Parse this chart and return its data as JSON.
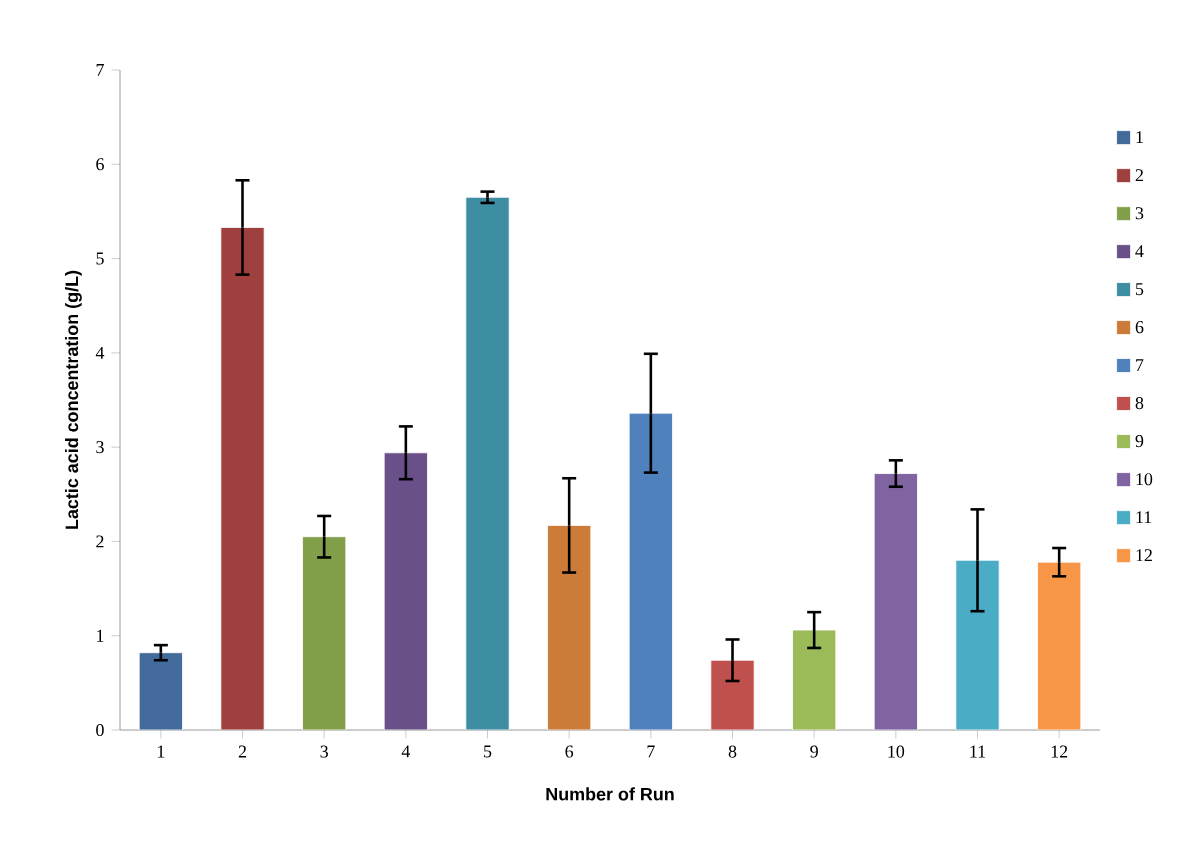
{
  "chart_data": {
    "type": "bar",
    "xlabel": "Number of Run",
    "ylabel": "Lactic acid concentration (g/L)",
    "categories": [
      "1",
      "2",
      "3",
      "4",
      "5",
      "6",
      "7",
      "8",
      "9",
      "10",
      "11",
      "12"
    ],
    "ylim": [
      0,
      7
    ],
    "yticks": [
      0,
      1,
      2,
      3,
      4,
      5,
      6,
      7
    ],
    "grid": false,
    "legend": "right",
    "series": [
      {
        "name": "1",
        "color": "#426b9c",
        "values": [
          0.82,
          null,
          null,
          null,
          null,
          null,
          null,
          null,
          null,
          null,
          null,
          null
        ],
        "errors": [
          0.08,
          null,
          null,
          null,
          null,
          null,
          null,
          null,
          null,
          null,
          null,
          null
        ]
      },
      {
        "name": "2",
        "color": "#a0403e",
        "values": [
          null,
          5.33,
          null,
          null,
          null,
          null,
          null,
          null,
          null,
          null,
          null,
          null
        ],
        "errors": [
          null,
          0.5,
          null,
          null,
          null,
          null,
          null,
          null,
          null,
          null,
          null,
          null
        ]
      },
      {
        "name": "3",
        "color": "#82a04a",
        "values": [
          null,
          null,
          2.05,
          null,
          null,
          null,
          null,
          null,
          null,
          null,
          null,
          null
        ],
        "errors": [
          null,
          null,
          0.22,
          null,
          null,
          null,
          null,
          null,
          null,
          null,
          null,
          null
        ]
      },
      {
        "name": "4",
        "color": "#6a5088",
        "values": [
          null,
          null,
          null,
          2.94,
          null,
          null,
          null,
          null,
          null,
          null,
          null,
          null
        ],
        "errors": [
          null,
          null,
          null,
          0.28,
          null,
          null,
          null,
          null,
          null,
          null,
          null,
          null
        ]
      },
      {
        "name": "5",
        "color": "#3d8da3",
        "values": [
          null,
          null,
          null,
          null,
          5.65,
          null,
          null,
          null,
          null,
          null,
          null,
          null
        ],
        "errors": [
          null,
          null,
          null,
          null,
          0.06,
          null,
          null,
          null,
          null,
          null,
          null,
          null
        ]
      },
      {
        "name": "6",
        "color": "#cc7b38",
        "values": [
          null,
          null,
          null,
          null,
          null,
          2.17,
          null,
          null,
          null,
          null,
          null,
          null
        ],
        "errors": [
          null,
          null,
          null,
          null,
          null,
          0.5,
          null,
          null,
          null,
          null,
          null,
          null
        ]
      },
      {
        "name": "7",
        "color": "#4f81bd",
        "values": [
          null,
          null,
          null,
          null,
          null,
          null,
          3.36,
          null,
          null,
          null,
          null,
          null
        ],
        "errors": [
          null,
          null,
          null,
          null,
          null,
          null,
          0.63,
          null,
          null,
          null,
          null,
          null
        ]
      },
      {
        "name": "8",
        "color": "#c0504d",
        "values": [
          null,
          null,
          null,
          null,
          null,
          null,
          null,
          0.74,
          null,
          null,
          null,
          null
        ],
        "errors": [
          null,
          null,
          null,
          null,
          null,
          null,
          null,
          0.22,
          null,
          null,
          null,
          null
        ]
      },
      {
        "name": "9",
        "color": "#9bbb59",
        "values": [
          null,
          null,
          null,
          null,
          null,
          null,
          null,
          null,
          1.06,
          null,
          null,
          null
        ],
        "errors": [
          null,
          null,
          null,
          null,
          null,
          null,
          null,
          null,
          0.19,
          null,
          null,
          null
        ]
      },
      {
        "name": "10",
        "color": "#8064a2",
        "values": [
          null,
          null,
          null,
          null,
          null,
          null,
          null,
          null,
          null,
          2.72,
          null,
          null
        ],
        "errors": [
          null,
          null,
          null,
          null,
          null,
          null,
          null,
          null,
          null,
          0.14,
          null,
          null
        ]
      },
      {
        "name": "11",
        "color": "#4bacc6",
        "values": [
          null,
          null,
          null,
          null,
          null,
          null,
          null,
          null,
          null,
          null,
          1.8,
          null
        ],
        "errors": [
          null,
          null,
          null,
          null,
          null,
          null,
          null,
          null,
          null,
          null,
          0.54,
          null
        ]
      },
      {
        "name": "12",
        "color": "#f79646",
        "values": [
          null,
          null,
          null,
          null,
          null,
          null,
          null,
          null,
          null,
          null,
          null,
          1.78
        ],
        "errors": [
          null,
          null,
          null,
          null,
          null,
          null,
          null,
          null,
          null,
          null,
          null,
          0.15
        ]
      }
    ]
  }
}
